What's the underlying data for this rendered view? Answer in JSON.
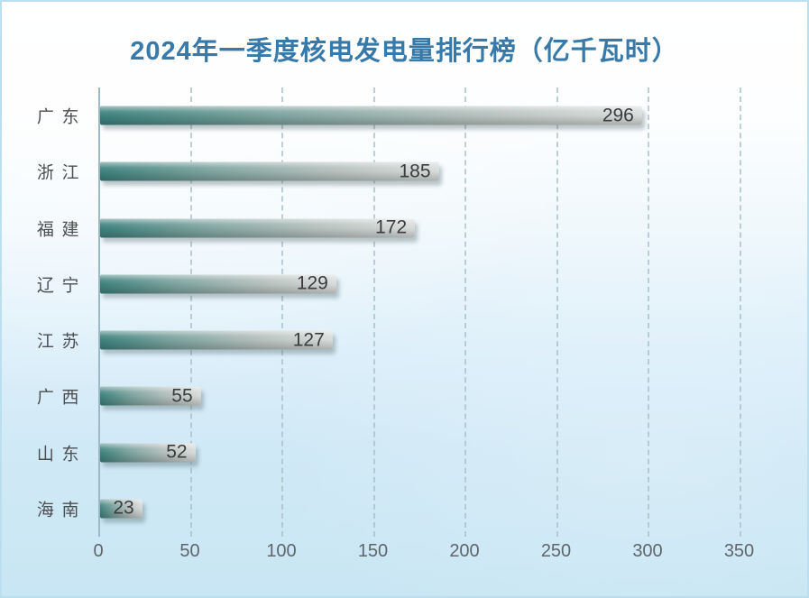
{
  "title": "2024年一季度核电发电量排行榜（亿千瓦时）",
  "colors": {
    "title": "#3779a9",
    "bar_teal": "#3d817d",
    "bar_teal_mid": "#7da39e",
    "bar_gray": "#b4bfbc",
    "bar_gray_light": "#d8dcdb",
    "value_label": "#3a3c3e",
    "category_label": "#4c4f52",
    "axis_line": "#9db9c6",
    "gridline": "#a9bfc8",
    "background_bottom": "#c9e6f4"
  },
  "chart_data": {
    "type": "bar",
    "orientation": "horizontal",
    "title": "2024年一季度核电发电量排行榜（亿千瓦时）",
    "categories": [
      "广东",
      "浙江",
      "福建",
      "辽宁",
      "江苏",
      "广西",
      "山东",
      "海南"
    ],
    "values": [
      296,
      185,
      172,
      129,
      127,
      55,
      52,
      23
    ],
    "xlabel": "",
    "ylabel": "",
    "xlim": [
      0,
      350
    ],
    "xticks": [
      0,
      50,
      100,
      150,
      200,
      250,
      300,
      350
    ],
    "grid": "vertical-dashed",
    "legend": "none",
    "value_labels": "inside-end"
  }
}
